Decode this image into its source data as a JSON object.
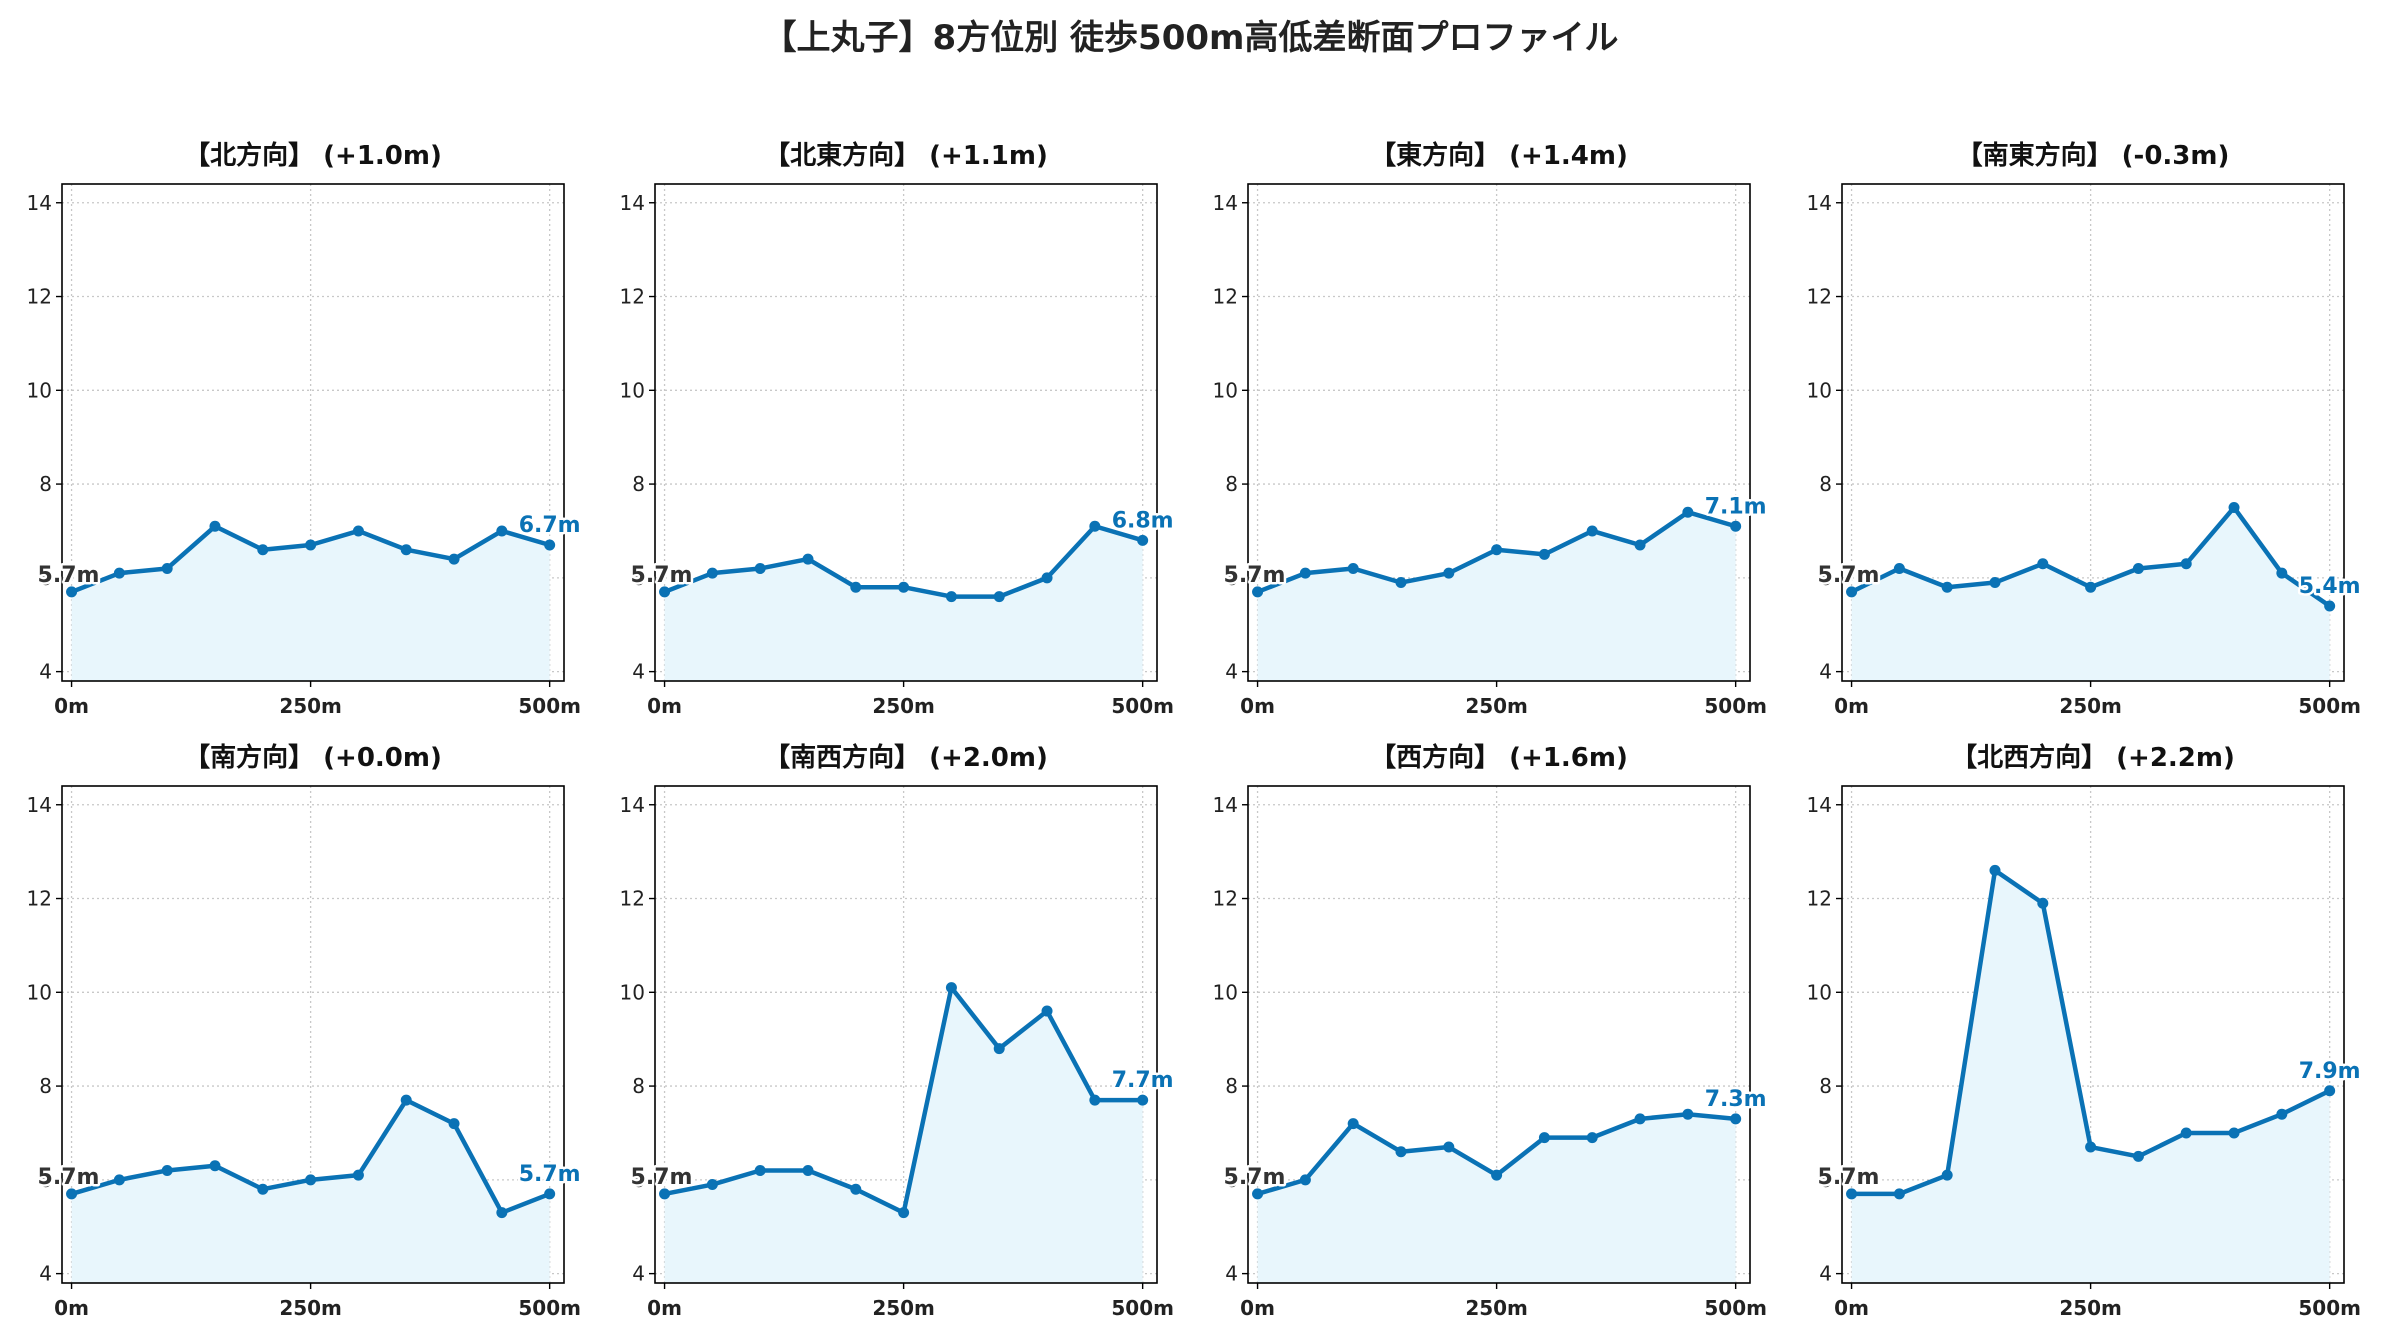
{
  "title": "【上丸子】8方位別 徒歩500m高低差断面プロファイル",
  "colors": {
    "line": "#0a72b5",
    "fill": "#e8f6fc",
    "grid": "#c8c8c8",
    "start_label": "#333333",
    "end_label": "#0a72b5"
  },
  "chart_data": [
    {
      "type": "area",
      "title": "【北方向】 (+1.0m)",
      "x": [
        0,
        50,
        100,
        150,
        200,
        250,
        300,
        350,
        400,
        450,
        500
      ],
      "xticks": [
        "0m",
        "250m",
        "500m"
      ],
      "xtick_values": [
        0,
        250,
        500
      ],
      "yticks": [
        "4",
        "6",
        "8",
        "10",
        "12",
        "14"
      ],
      "ytick_values": [
        4,
        6,
        8,
        10,
        12,
        14
      ],
      "ylim": [
        3.8,
        14.4
      ],
      "xlim": [
        -10,
        515
      ],
      "grid": true,
      "series": [
        {
          "values": [
            5.7,
            6.1,
            6.2,
            7.1,
            6.6,
            6.7,
            7.0,
            6.6,
            6.4,
            7.0,
            6.7
          ]
        }
      ],
      "start_label": "5.7m",
      "end_label": "6.7m"
    },
    {
      "type": "area",
      "title": "【北東方向】 (+1.1m)",
      "x": [
        0,
        50,
        100,
        150,
        200,
        250,
        300,
        350,
        400,
        450,
        500
      ],
      "xticks": [
        "0m",
        "250m",
        "500m"
      ],
      "xtick_values": [
        0,
        250,
        500
      ],
      "yticks": [
        "4",
        "6",
        "8",
        "10",
        "12",
        "14"
      ],
      "ytick_values": [
        4,
        6,
        8,
        10,
        12,
        14
      ],
      "ylim": [
        3.8,
        14.4
      ],
      "xlim": [
        -10,
        515
      ],
      "grid": true,
      "series": [
        {
          "values": [
            5.7,
            6.1,
            6.2,
            6.4,
            5.8,
            5.8,
            5.6,
            5.6,
            6.0,
            7.1,
            6.8
          ]
        }
      ],
      "start_label": "5.7m",
      "end_label": "6.8m"
    },
    {
      "type": "area",
      "title": "【東方向】 (+1.4m)",
      "x": [
        0,
        50,
        100,
        150,
        200,
        250,
        300,
        350,
        400,
        450,
        500
      ],
      "xticks": [
        "0m",
        "250m",
        "500m"
      ],
      "xtick_values": [
        0,
        250,
        500
      ],
      "yticks": [
        "4",
        "6",
        "8",
        "10",
        "12",
        "14"
      ],
      "ytick_values": [
        4,
        6,
        8,
        10,
        12,
        14
      ],
      "ylim": [
        3.8,
        14.4
      ],
      "xlim": [
        -10,
        515
      ],
      "grid": true,
      "series": [
        {
          "values": [
            5.7,
            6.1,
            6.2,
            5.9,
            6.1,
            6.6,
            6.5,
            7.0,
            6.7,
            7.4,
            7.1
          ]
        }
      ],
      "start_label": "5.7m",
      "end_label": "7.1m"
    },
    {
      "type": "area",
      "title": "【南東方向】 (-0.3m)",
      "x": [
        0,
        50,
        100,
        150,
        200,
        250,
        300,
        350,
        400,
        450,
        500
      ],
      "xticks": [
        "0m",
        "250m",
        "500m"
      ],
      "xtick_values": [
        0,
        250,
        500
      ],
      "yticks": [
        "4",
        "6",
        "8",
        "10",
        "12",
        "14"
      ],
      "ytick_values": [
        4,
        6,
        8,
        10,
        12,
        14
      ],
      "ylim": [
        3.8,
        14.4
      ],
      "xlim": [
        -10,
        515
      ],
      "grid": true,
      "series": [
        {
          "values": [
            5.7,
            6.2,
            5.8,
            5.9,
            6.3,
            5.8,
            6.2,
            6.3,
            7.5,
            6.1,
            5.4
          ]
        }
      ],
      "start_label": "5.7m",
      "end_label": "5.4m"
    },
    {
      "type": "area",
      "title": "【南方向】 (+0.0m)",
      "x": [
        0,
        50,
        100,
        150,
        200,
        250,
        300,
        350,
        400,
        450,
        500
      ],
      "xticks": [
        "0m",
        "250m",
        "500m"
      ],
      "xtick_values": [
        0,
        250,
        500
      ],
      "yticks": [
        "4",
        "6",
        "8",
        "10",
        "12",
        "14"
      ],
      "ytick_values": [
        4,
        6,
        8,
        10,
        12,
        14
      ],
      "ylim": [
        3.8,
        14.4
      ],
      "xlim": [
        -10,
        515
      ],
      "grid": true,
      "series": [
        {
          "values": [
            5.7,
            6.0,
            6.2,
            6.3,
            5.8,
            6.0,
            6.1,
            7.7,
            7.2,
            5.3,
            5.7
          ]
        }
      ],
      "start_label": "5.7m",
      "end_label": "5.7m"
    },
    {
      "type": "area",
      "title": "【南西方向】 (+2.0m)",
      "x": [
        0,
        50,
        100,
        150,
        200,
        250,
        300,
        350,
        400,
        450,
        500
      ],
      "xticks": [
        "0m",
        "250m",
        "500m"
      ],
      "xtick_values": [
        0,
        250,
        500
      ],
      "yticks": [
        "4",
        "6",
        "8",
        "10",
        "12",
        "14"
      ],
      "ytick_values": [
        4,
        6,
        8,
        10,
        12,
        14
      ],
      "ylim": [
        3.8,
        14.4
      ],
      "xlim": [
        -10,
        515
      ],
      "grid": true,
      "series": [
        {
          "values": [
            5.7,
            5.9,
            6.2,
            6.2,
            5.8,
            5.3,
            10.1,
            8.8,
            9.6,
            7.7,
            7.7
          ]
        }
      ],
      "start_label": "5.7m",
      "end_label": "7.7m"
    },
    {
      "type": "area",
      "title": "【西方向】 (+1.6m)",
      "x": [
        0,
        50,
        100,
        150,
        200,
        250,
        300,
        350,
        400,
        450,
        500
      ],
      "xticks": [
        "0m",
        "250m",
        "500m"
      ],
      "xtick_values": [
        0,
        250,
        500
      ],
      "yticks": [
        "4",
        "6",
        "8",
        "10",
        "12",
        "14"
      ],
      "ytick_values": [
        4,
        6,
        8,
        10,
        12,
        14
      ],
      "ylim": [
        3.8,
        14.4
      ],
      "xlim": [
        -10,
        515
      ],
      "grid": true,
      "series": [
        {
          "values": [
            5.7,
            6.0,
            7.2,
            6.6,
            6.7,
            6.1,
            6.9,
            6.9,
            7.3,
            7.4,
            7.3
          ]
        }
      ],
      "start_label": "5.7m",
      "end_label": "7.3m"
    },
    {
      "type": "area",
      "title": "【北西方向】 (+2.2m)",
      "x": [
        0,
        50,
        100,
        150,
        200,
        250,
        300,
        350,
        400,
        450,
        500
      ],
      "xticks": [
        "0m",
        "250m",
        "500m"
      ],
      "xtick_values": [
        0,
        250,
        500
      ],
      "yticks": [
        "4",
        "6",
        "8",
        "10",
        "12",
        "14"
      ],
      "ytick_values": [
        4,
        6,
        8,
        10,
        12,
        14
      ],
      "ylim": [
        3.8,
        14.4
      ],
      "xlim": [
        -10,
        515
      ],
      "grid": true,
      "series": [
        {
          "values": [
            5.7,
            5.7,
            6.1,
            12.6,
            11.9,
            6.7,
            6.5,
            7.0,
            7.0,
            7.4,
            7.9
          ]
        }
      ],
      "start_label": "5.7m",
      "end_label": "7.9m"
    }
  ]
}
